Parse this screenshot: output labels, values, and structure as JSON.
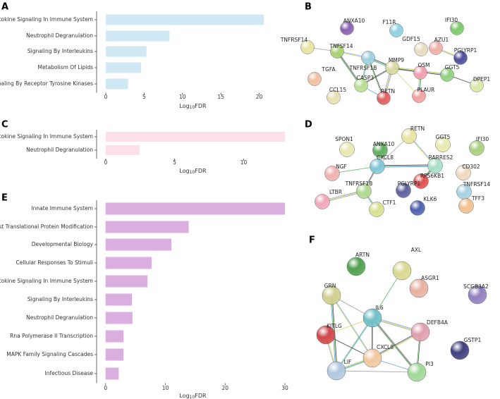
{
  "chart_data": [
    {
      "type": "bar",
      "panel": "A",
      "orientation": "horizontal",
      "categories": [
        "Cytokine Signaling In Immune System",
        "Neutrophil Degranulation",
        "Signaling By Interleukins",
        "Metabolism Of Lipids",
        "Signaling By Receptor Tyrosine Kinases"
      ],
      "values": [
        20.6,
        8.3,
        5.3,
        4.6,
        2.9
      ],
      "color": "#cfe8f3",
      "xlim": [
        -1.2,
        23.9
      ],
      "xticks": [
        0,
        5,
        10,
        15,
        20
      ],
      "x_label": [
        "Log",
        "10",
        "FDR"
      ]
    },
    {
      "type": "bar",
      "panel": "C",
      "orientation": "horizontal",
      "categories": [
        "Cytokine Signaling In Immune System",
        "Neutrophil Degranulation"
      ],
      "values": [
        13.0,
        2.45
      ],
      "color": "#fde0e8",
      "xlim": [
        -0.66,
        13.3
      ],
      "xticks": [
        0,
        5,
        10
      ],
      "x_label": [
        "Log",
        "10",
        "FDR"
      ]
    },
    {
      "type": "bar",
      "panel": "E",
      "orientation": "horizontal",
      "categories": [
        "Innate Immune System",
        "Post Translational Protein Modification",
        "Developmental Biology",
        "Cellular Responses To Stimuli",
        "Cytokine Signaling In Immune System",
        "Signaling By Interleukins",
        "Neutrophil Degranulation",
        "Rna Polymerase II Transcription",
        "MAPK Family Signaling Cascades",
        "Infectious Disease"
      ],
      "values": [
        30.0,
        13.9,
        11.0,
        7.7,
        7.0,
        4.4,
        4.5,
        3.0,
        3.0,
        2.2
      ],
      "color": "#dbaee0",
      "xlim": [
        -1.5,
        30.7
      ],
      "xticks": [
        0,
        10,
        20,
        30
      ],
      "x_label": [
        "Log",
        "10",
        "FDR"
      ]
    }
  ],
  "networks": [
    {
      "panel": "B",
      "nodes": [
        {
          "label": "ANXA10",
          "color": "#8a63b0"
        },
        {
          "label": "F11R",
          "color": "#8fd0e0"
        },
        {
          "label": "IFI30",
          "color": "#7cc96e"
        },
        {
          "label": "GDF15",
          "color": "#e8dcc0"
        },
        {
          "label": "AZU1",
          "color": "#f0b0a8"
        },
        {
          "label": "PGLYRP1",
          "color": "#4d4d9a"
        },
        {
          "label": "TNFRSF14",
          "color": "#e8e4a0"
        },
        {
          "label": "TNFSF14",
          "color": "#a8d070"
        },
        {
          "label": "TNFRSF1B",
          "color": "#9fd0e0"
        },
        {
          "label": "MMP9",
          "color": "#d8d8a0"
        },
        {
          "label": "OSM",
          "color": "#f0a0b0"
        },
        {
          "label": "GGT5",
          "color": "#90d080"
        },
        {
          "label": "DPEP1",
          "color": "#d8e8a8"
        },
        {
          "label": "TGFA",
          "color": "#f0c0a0"
        },
        {
          "label": "CASP3",
          "color": "#b8e090"
        },
        {
          "label": "PLAUR",
          "color": "#f0a0a0"
        },
        {
          "label": "RETN",
          "color": "#e06060"
        },
        {
          "label": "CCL15",
          "color": "#e8e0b0"
        }
      ]
    },
    {
      "panel": "D",
      "nodes": [
        {
          "label": "RETN",
          "color": "#e8e4a0"
        },
        {
          "label": "ANXA10",
          "color": "#60b060"
        },
        {
          "label": "SPON1",
          "color": "#e8e8b0"
        },
        {
          "label": "GGT5",
          "color": "#e8e8b0"
        },
        {
          "label": "IFI30",
          "color": "#a8d080"
        },
        {
          "label": "CXCL8",
          "color": "#80c8d8"
        },
        {
          "label": "RARRES2",
          "color": "#a8e0c8"
        },
        {
          "label": "CD302",
          "color": "#f0d8c0"
        },
        {
          "label": "NGF",
          "color": "#f0b0b0"
        },
        {
          "label": "RPS6KB1",
          "color": "#e05050"
        },
        {
          "label": "PGLYRP1",
          "color": "#6060a0"
        },
        {
          "label": "TNFRSF1B",
          "color": "#b0d890"
        },
        {
          "label": "TNFRSF14",
          "color": "#a8d0e0"
        },
        {
          "label": "LTBR",
          "color": "#f0a8b8"
        },
        {
          "label": "TFF3",
          "color": "#f0c090"
        },
        {
          "label": "CTF1",
          "color": "#d8e090"
        },
        {
          "label": "KLK6",
          "color": "#5060b0"
        }
      ]
    },
    {
      "panel": "F",
      "nodes": [
        {
          "label": "ARTN",
          "color": "#50a050"
        },
        {
          "label": "AXL",
          "color": "#d8d890"
        },
        {
          "label": "ASGR1",
          "color": "#e8b0a0"
        },
        {
          "label": "SCGB3A2",
          "color": "#9080c0"
        },
        {
          "label": "GRN",
          "color": "#d0d090"
        },
        {
          "label": "IL6",
          "color": "#70c0c8"
        },
        {
          "label": "DEFB4A",
          "color": "#e0a0b0"
        },
        {
          "label": "KITLG",
          "color": "#d04848"
        },
        {
          "label": "GSTP1",
          "color": "#404080"
        },
        {
          "label": "CXCL8",
          "color": "#f0c8a0"
        },
        {
          "label": "LIF",
          "color": "#b0c8e0"
        },
        {
          "label": "PI3",
          "color": "#a0d898"
        }
      ]
    }
  ]
}
